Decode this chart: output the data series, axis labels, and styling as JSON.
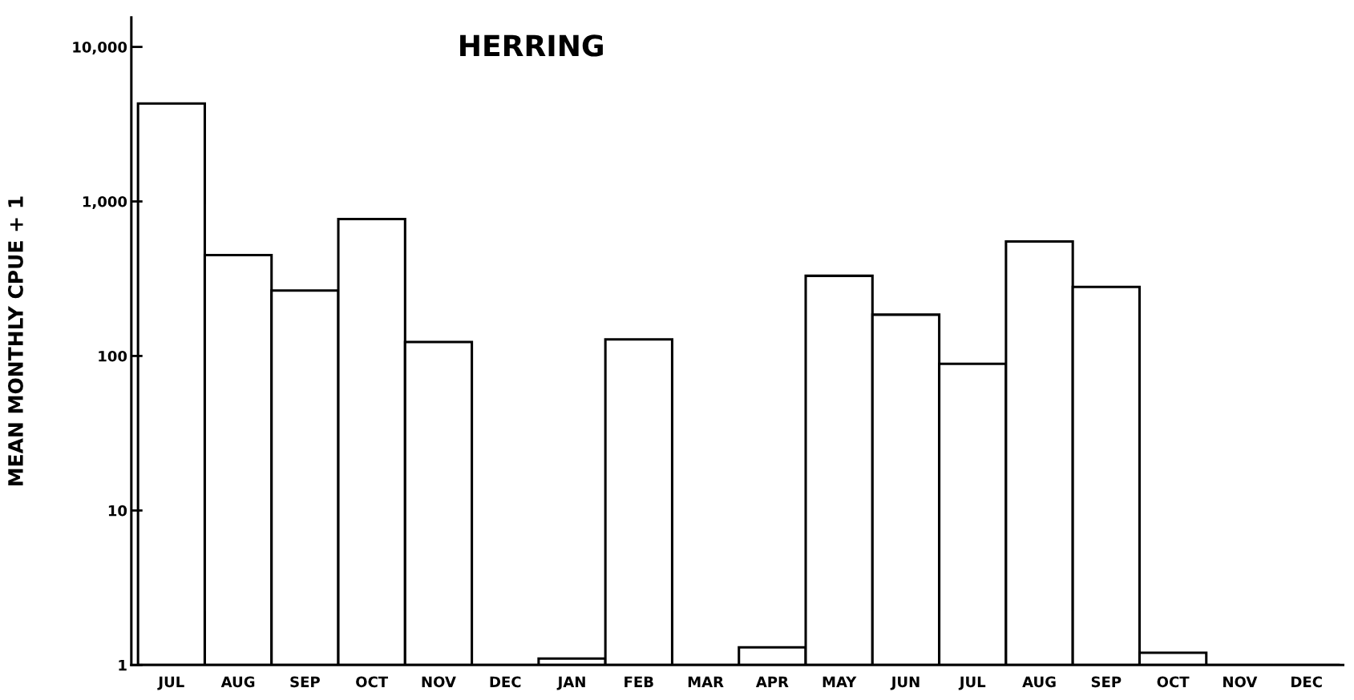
{
  "chart_data": {
    "type": "bar",
    "title": "HERRING",
    "ylabel": "MEAN MONTHLY CPUE + 1",
    "categories": [
      "JUL",
      "AUG",
      "SEP",
      "OCT",
      "NOV",
      "DEC",
      "JAN",
      "FEB",
      "MAR",
      "APR",
      "MAY",
      "JUN",
      "JUL",
      "AUG",
      "SEP",
      "OCT",
      "NOV",
      "DEC"
    ],
    "values": [
      4300,
      450,
      265,
      770,
      123,
      1,
      1.1,
      128,
      1,
      1.3,
      330,
      185,
      89,
      550,
      280,
      1.2,
      1,
      1
    ],
    "color": "#ffffff",
    "log": true,
    "ylim": [
      1,
      15500
    ],
    "yticks": [
      1,
      10,
      100,
      {
        "value": 1000,
        "label": "1,000"
      },
      {
        "value": 10000,
        "label": "10,000"
      }
    ],
    "grid": false
  }
}
